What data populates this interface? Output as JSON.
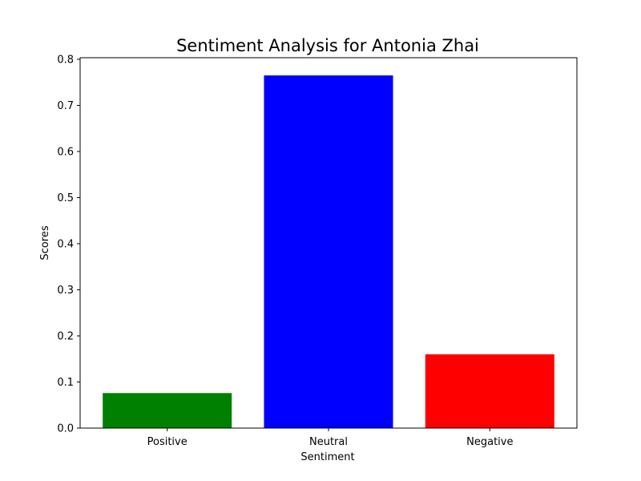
{
  "chart_data": {
    "type": "bar",
    "title": "Sentiment Analysis for Antonia Zhai",
    "xlabel": "Sentiment",
    "ylabel": "Scores",
    "categories": [
      "Positive",
      "Neutral",
      "Negative"
    ],
    "values": [
      0.076,
      0.765,
      0.16
    ],
    "colors": [
      "#008000",
      "#0000ff",
      "#ff0000"
    ],
    "ylim": [
      0,
      0.8
    ],
    "yticks": [
      0.0,
      0.1,
      0.2,
      0.3,
      0.4,
      0.5,
      0.6,
      0.7,
      0.8
    ],
    "ytick_labels": [
      "0.0",
      "0.1",
      "0.2",
      "0.3",
      "0.4",
      "0.5",
      "0.6",
      "0.7",
      "0.8"
    ],
    "grid": false,
    "legend": "none"
  }
}
